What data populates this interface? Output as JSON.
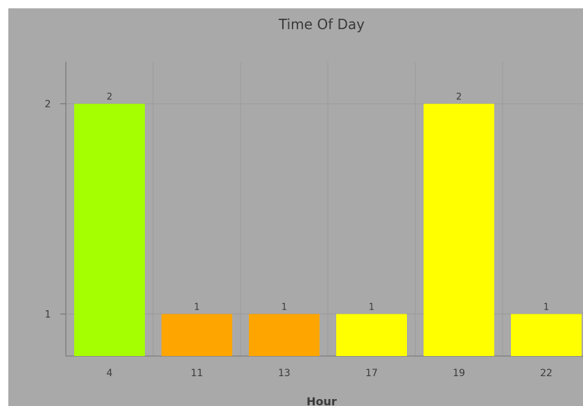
{
  "chart_data": {
    "type": "bar",
    "title": "Time Of Day",
    "xlabel": "Hour",
    "ylabel": "",
    "categories": [
      "4",
      "11",
      "13",
      "17",
      "19",
      "22"
    ],
    "values": [
      2,
      1,
      1,
      1,
      2,
      1
    ],
    "data_labels": [
      "2",
      "1",
      "1",
      "1",
      "2",
      "1"
    ],
    "colors": [
      "#a6ff00",
      "#ffa500",
      "#ffa500",
      "#ffff00",
      "#ffff00",
      "#ffff00"
    ],
    "ylim": [
      0.8,
      2.2
    ],
    "yticks": [
      1,
      2
    ],
    "ytick_labels": [
      "1",
      "2"
    ],
    "grid": true,
    "legend": "none"
  }
}
